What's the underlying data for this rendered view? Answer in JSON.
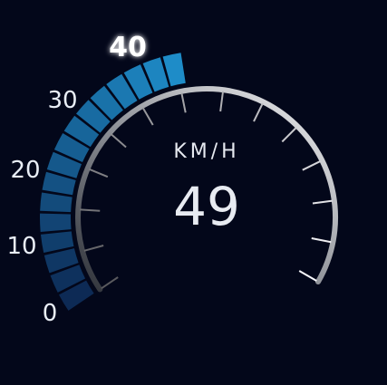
{
  "gauge": {
    "unit_label": "KM/H",
    "speed_value": "49",
    "scale_labels": [
      "0",
      "10",
      "20",
      "30",
      "40"
    ],
    "highlighted_label": "40",
    "colors": {
      "background": "#03071a",
      "segment_start": "#0d2a55",
      "segment_end": "#1e8cc8",
      "dial_dark": "#3a3d45",
      "dial_light": "#f2f2f4"
    }
  }
}
